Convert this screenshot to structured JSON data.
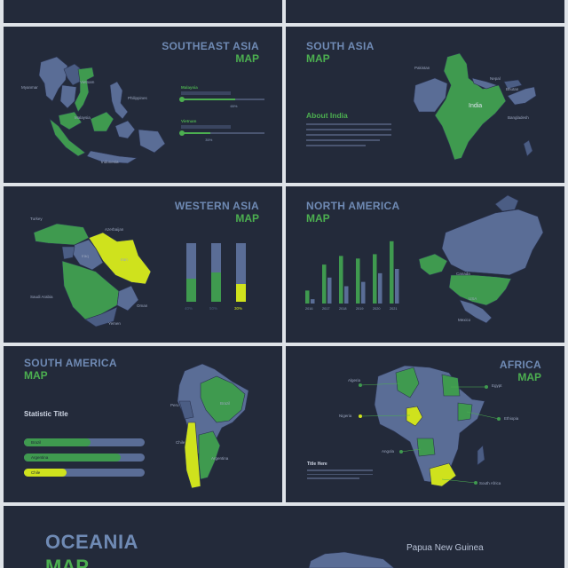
{
  "southeast_asia": {
    "title_line1": "SOUTHEAST ASIA",
    "title_line2": "MAP",
    "labels": {
      "myanmar": "Myanmar",
      "laos": "Laos",
      "vietnam": "Vietnam",
      "philippines": "Philippines",
      "malaysia": "Malaysia",
      "indonesia": "Indonesia"
    },
    "bars": [
      {
        "name": "Malaysia",
        "value": "65%",
        "fraction": 0.65
      },
      {
        "name": "Vietnam",
        "value": "35%",
        "fraction": 0.35
      }
    ]
  },
  "south_asia": {
    "title_line1": "SOUTH ASIA",
    "title_line2": "MAP",
    "about": "About India",
    "labels": {
      "pakistan": "Pakistan",
      "nepal": "Nepal",
      "bhutan": "Bhutan",
      "india": "India",
      "bangladesh": "Bangladesh"
    }
  },
  "western_asia": {
    "title_line1": "WESTERN ASIA",
    "title_line2": "MAP",
    "labels": {
      "turkey": "Turkey",
      "azerbaijan": "Azerbaijan",
      "iran": "Iran",
      "iraq": "Iraq",
      "saudi": "Saudi Arabia",
      "oman": "Oman",
      "yemen": "Yemen"
    },
    "bars": [
      {
        "name": "Turkey",
        "value": "40%",
        "fraction": 0.4
      },
      {
        "name": "Saudi Arabia",
        "value": "50%",
        "fraction": 0.5
      },
      {
        "name": "Iran",
        "value": "30%",
        "fraction": 0.3
      }
    ]
  },
  "north_america": {
    "title_line1": "NORTH AMERICA",
    "title_line2": "MAP",
    "labels": {
      "canada": "Canada",
      "usa": "USA",
      "mexico": "Mexico"
    },
    "chart_data": {
      "type": "bar",
      "categories": [
        "2016",
        "2017",
        "2018",
        "2019",
        "2020",
        "2021"
      ],
      "series": [
        {
          "values": [
            15,
            45,
            55,
            52,
            57,
            72
          ]
        },
        {
          "values": [
            5,
            30,
            20,
            25,
            35,
            40
          ]
        }
      ],
      "ylim": [
        0,
        80
      ]
    }
  },
  "south_america": {
    "title_line1": "SOUTH AMERICA",
    "title_line2": "MAP",
    "stat_title": "Statistic Title",
    "labels": {
      "peru": "Peru",
      "brazil": "Brazil",
      "chile": "Chile",
      "argentina": "Argentina"
    },
    "bars": [
      {
        "name": "Brazil",
        "value": "55%",
        "fraction": 0.55
      },
      {
        "name": "Argentina",
        "value": "80%",
        "fraction": 0.8
      },
      {
        "name": "Chile",
        "value": "35%",
        "fraction": 0.35
      }
    ]
  },
  "africa": {
    "title_line1": "AFRICA",
    "title_line2": "MAP",
    "title_here": "Title Here",
    "labels": {
      "algeria": "Algeria",
      "egypt": "Egypt",
      "nigeria": "Nigeria",
      "ethiopia": "Ethiopia",
      "angola": "Angola",
      "south_africa": "South Africa"
    }
  },
  "oceania": {
    "title_line1": "OCEANIA",
    "title_line2": "MAP",
    "label_png": "Papua New Guinea"
  },
  "colors": {
    "bg": "#232a3a",
    "land": "#5a6d96",
    "green": "#3f9a4f",
    "yellow": "#cfe21d",
    "title_blue": "#6f8ab4"
  }
}
